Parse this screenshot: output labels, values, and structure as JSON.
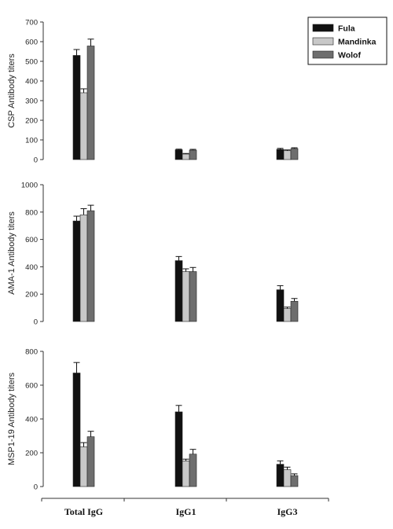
{
  "chart_data": {
    "type": "bar",
    "categories": [
      "Total IgG",
      "IgG1",
      "IgG3"
    ],
    "legend": {
      "position": "top-right",
      "entries": [
        {
          "name": "Fula",
          "color": "#111111"
        },
        {
          "name": "Mandinka",
          "color": "#c8c8c8"
        },
        {
          "name": "Wolof",
          "color": "#6e6e6e"
        }
      ]
    },
    "panels": [
      {
        "ylabel": "CSP Antibody titers",
        "ylim": [
          0,
          700
        ],
        "yticks": [
          0,
          100,
          200,
          300,
          400,
          500,
          600,
          700
        ],
        "series": [
          {
            "name": "Fula",
            "values": [
              530,
              50,
              52
            ],
            "errors": [
              30,
              3,
              5
            ]
          },
          {
            "name": "Mandinka",
            "values": [
              340,
              28,
              45
            ],
            "errors": [
              20,
              3,
              4
            ]
          },
          {
            "name": "Wolof",
            "values": [
              578,
              48,
              56
            ],
            "errors": [
              35,
              4,
              4
            ]
          }
        ]
      },
      {
        "ylabel": "AMA-1 Antibody titers",
        "ylim": [
          0,
          1000
        ],
        "yticks": [
          0,
          200,
          400,
          600,
          800,
          1000
        ],
        "series": [
          {
            "name": "Fula",
            "values": [
              735,
              445,
              232
            ],
            "errors": [
              35,
              30,
              30
            ]
          },
          {
            "name": "Mandinka",
            "values": [
              780,
              365,
              95
            ],
            "errors": [
              45,
              20,
              10
            ]
          },
          {
            "name": "Wolof",
            "values": [
              810,
              365,
              148
            ],
            "errors": [
              40,
              30,
              20
            ]
          }
        ]
      },
      {
        "ylabel": "MSP1-19 Antibody titers",
        "ylim": [
          0,
          800
        ],
        "yticks": [
          0,
          200,
          400,
          600,
          800
        ],
        "series": [
          {
            "name": "Fula",
            "values": [
              672,
              442,
              132
            ],
            "errors": [
              62,
              38,
              20
            ]
          },
          {
            "name": "Mandinka",
            "values": [
              235,
              152,
              100
            ],
            "errors": [
              25,
              10,
              15
            ]
          },
          {
            "name": "Wolof",
            "values": [
              295,
              192,
              65
            ],
            "errors": [
              32,
              28,
              10
            ]
          }
        ]
      }
    ]
  }
}
